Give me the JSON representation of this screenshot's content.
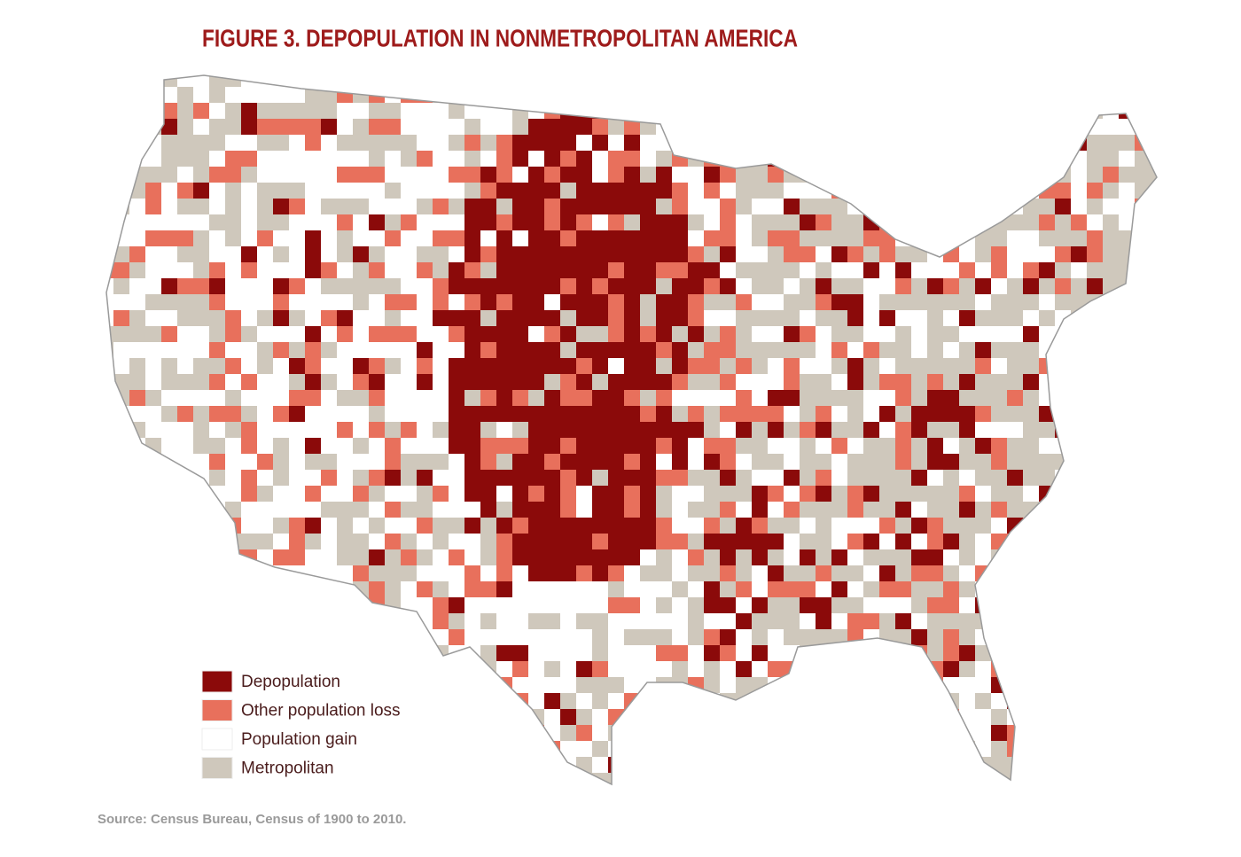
{
  "title": "FIGURE 3. DEPOPULATION IN NONMETROPOLITAN AMERICA",
  "legend": [
    {
      "label": "Depopulation",
      "color": "#8b0a0a"
    },
    {
      "label": "Other population loss",
      "color": "#e8705c"
    },
    {
      "label": "Population gain",
      "color": "#ffffff"
    },
    {
      "label": "Metropolitan",
      "color": "#cfc8bc"
    }
  ],
  "source": "Source: Census Bureau, Census of 1900 to 2010."
}
